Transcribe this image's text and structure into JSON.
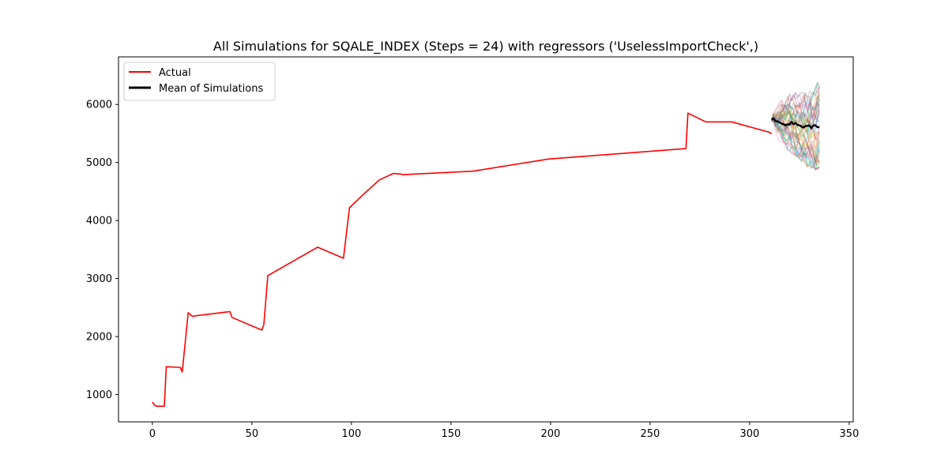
{
  "chart_data": {
    "type": "line",
    "title": "All Simulations for SQALE_INDEX (Steps = 24) with regressors ('UselessImportCheck',)",
    "xlabel": "",
    "ylabel": "",
    "xlim": [
      -17,
      352
    ],
    "ylim": [
      530,
      6820
    ],
    "xticks": [
      0,
      50,
      100,
      150,
      200,
      250,
      300,
      350
    ],
    "yticks": [
      1000,
      2000,
      3000,
      4000,
      5000,
      6000
    ],
    "grid": false,
    "legend": {
      "placement": "top-left",
      "entries": [
        "Actual",
        "Mean of Simulations"
      ]
    },
    "series": [
      {
        "name": "Actual",
        "color": "#ff0000",
        "x": [
          0,
          1,
          2,
          3,
          5,
          6,
          7,
          13,
          14,
          15,
          18,
          20,
          39,
          40,
          55,
          56,
          58,
          83,
          96,
          99,
          106,
          114,
          121,
          125,
          126,
          161,
          199,
          268,
          269,
          278,
          291,
          310,
          311
        ],
        "y": [
          870,
          820,
          800,
          800,
          800,
          800,
          1480,
          1470,
          1470,
          1390,
          2410,
          2350,
          2430,
          2330,
          2110,
          2210,
          3050,
          3540,
          3350,
          4220,
          4450,
          4700,
          4810,
          4800,
          4790,
          4850,
          5060,
          5240,
          5850,
          5700,
          5700,
          5520,
          5490
        ]
      },
      {
        "name": "Mean of Simulations",
        "color": "#000000",
        "x": [
          311,
          312,
          313,
          314,
          315,
          316,
          317,
          318,
          319,
          320,
          321,
          322,
          323,
          324,
          325,
          326,
          327,
          328,
          329,
          330,
          331,
          332,
          333,
          334,
          335
        ],
        "y": [
          5740,
          5760,
          5710,
          5710,
          5690,
          5670,
          5660,
          5640,
          5660,
          5650,
          5700,
          5660,
          5680,
          5650,
          5640,
          5620,
          5600,
          5630,
          5630,
          5640,
          5590,
          5640,
          5640,
          5610,
          5610
        ]
      }
    ],
    "simulation_range": {
      "x": [
        311,
        312,
        313,
        314,
        315,
        316,
        317,
        318,
        319,
        320,
        321,
        322,
        323,
        324,
        325,
        326,
        327,
        328,
        329,
        330,
        331,
        332,
        333,
        334,
        335
      ],
      "upper": [
        5750,
        5950,
        5980,
        6000,
        6050,
        6080,
        6100,
        6120,
        6150,
        6200,
        6150,
        6180,
        6220,
        6150,
        6200,
        6230,
        6230,
        6250,
        6200,
        6250,
        6260,
        6230,
        6300,
        6400,
        6510
      ],
      "lower": [
        5700,
        5560,
        5450,
        5380,
        5350,
        5330,
        5300,
        5250,
        5200,
        5180,
        5150,
        5120,
        5100,
        5080,
        5050,
        5000,
        5000,
        4950,
        4900,
        4930,
        4880,
        4900,
        4850,
        4860,
        4890
      ]
    },
    "simulation_colors": [
      "#1f77b4",
      "#ff7f0e",
      "#2ca02c",
      "#d62728",
      "#9467bd",
      "#8c564b",
      "#e377c2",
      "#7f7f7f",
      "#bcbd22",
      "#17becf"
    ]
  }
}
